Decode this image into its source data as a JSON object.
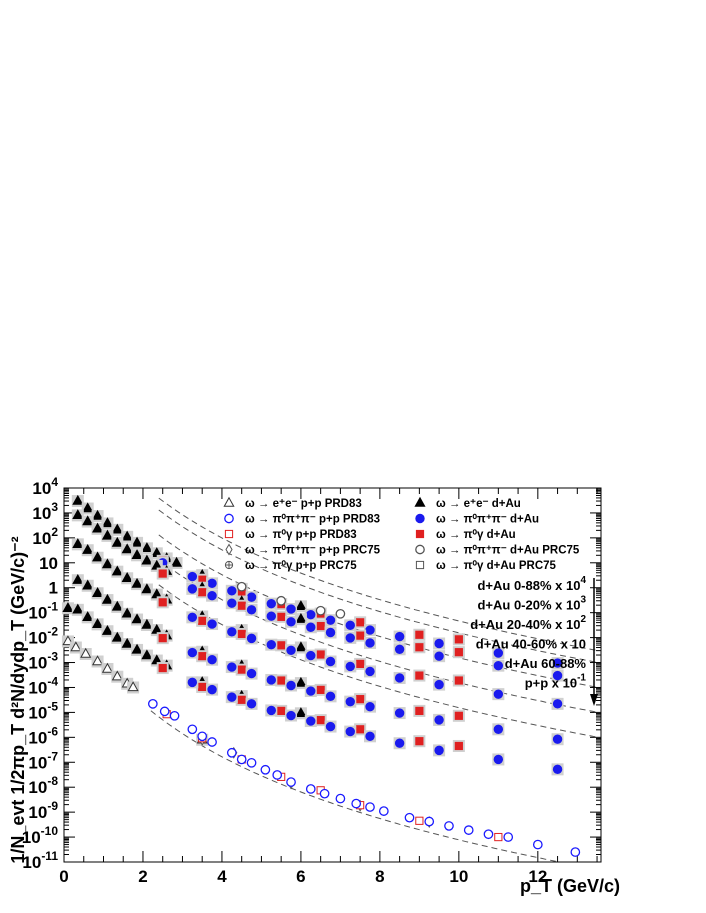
{
  "chart_data": {
    "type": "scatter",
    "xlabel": "p_T (GeV/c)",
    "ylabel": "1/N_evt 1/2πp_T d²N/dydp_T (GeV/c)⁻²",
    "xlim": [
      0,
      13.6
    ],
    "ylim": [
      1e-11,
      10000.0
    ],
    "y_scale": "log",
    "grid": false,
    "x_ticks": [
      "0",
      "2",
      "4",
      "6",
      "8",
      "10",
      "12"
    ],
    "y_ticks": [
      {
        "base": "10",
        "exp": "4"
      },
      {
        "base": "10",
        "exp": "3"
      },
      {
        "base": "10",
        "exp": "2"
      },
      {
        "base": "10",
        "exp": ""
      },
      {
        "base": "1",
        "exp": ""
      },
      {
        "base": "10",
        "exp": "-1"
      },
      {
        "base": "10",
        "exp": "-2"
      },
      {
        "base": "10",
        "exp": "-3"
      },
      {
        "base": "10",
        "exp": "-4"
      },
      {
        "base": "10",
        "exp": "-5"
      },
      {
        "base": "10",
        "exp": "-6"
      },
      {
        "base": "10",
        "exp": "-7"
      },
      {
        "base": "10",
        "exp": "-8"
      },
      {
        "base": "10",
        "exp": "-9"
      },
      {
        "base": "10",
        "exp": "-10"
      },
      {
        "base": "10",
        "exp": "-11"
      }
    ],
    "legend_position": "top-right",
    "legend": [
      {
        "text": "ω → e⁺e⁻ p+p PRD83",
        "marker": "open-triangle",
        "color": "#333333"
      },
      {
        "text": "ω → e⁺e⁻ d+Au",
        "marker": "filled-triangle",
        "color": "#000000"
      },
      {
        "text": "ω → π⁰π⁺π⁻ p+p PRD83",
        "marker": "open-circle",
        "color": "#1a1aff"
      },
      {
        "text": "ω → π⁰π⁺π⁻ d+Au",
        "marker": "filled-circle",
        "color": "#1a1aee"
      },
      {
        "text": "ω → π⁰γ p+p PRD83",
        "marker": "open-square",
        "color": "#e02020"
      },
      {
        "text": "ω → π⁰γ d+Au",
        "marker": "filled-square",
        "color": "#e02020"
      },
      {
        "text": "ω → π⁰π⁺π⁻ p+p PRC75",
        "marker": "open-diamond",
        "color": "#555555"
      },
      {
        "text": "ω → π⁰π⁺π⁻ d+Au PRC75",
        "marker": "open-circle",
        "color": "#555555"
      },
      {
        "text": "ω → π⁰γ p+p PRC75",
        "marker": "open-cross",
        "color": "#555555"
      },
      {
        "text": "ω → π⁰γ d+Au PRC75",
        "marker": "open-square",
        "color": "#555555"
      }
    ],
    "scale_labels": [
      {
        "text": "d+Au 0-88% x 10",
        "sup": "4"
      },
      {
        "text": "d+Au 0-20% x 10",
        "sup": "3"
      },
      {
        "text": "d+Au 20-40% x 10",
        "sup": "2"
      },
      {
        "text": "d+Au 40-60% x 10",
        "sup": ""
      },
      {
        "text": "d+Au 60-88%",
        "sup": ""
      },
      {
        "text": "p+p x 10",
        "sup": "-1"
      }
    ],
    "fit": {
      "A": 1,
      "p0": 1.2,
      "n": 10
    },
    "series": [
      {
        "name": "d+Au 0-88% x 10^4",
        "norm": 3000,
        "ee": [
          [
            0.35,
            3000
          ],
          [
            0.6,
            1500
          ],
          [
            0.85,
            750
          ],
          [
            1.1,
            380
          ],
          [
            1.35,
            210
          ],
          [
            1.6,
            110
          ],
          [
            1.85,
            63
          ],
          [
            2.1,
            38
          ],
          [
            2.35,
            24
          ],
          [
            2.6,
            15
          ],
          [
            2.85,
            9.8
          ],
          [
            3.5,
            3.2
          ],
          [
            4.5,
            0.9
          ],
          [
            6,
            0.18
          ]
        ],
        "pi0pipi": [
          [
            2.5,
            10
          ],
          [
            3.25,
            2.8
          ],
          [
            3.75,
            1.5
          ],
          [
            4.25,
            0.75
          ],
          [
            4.75,
            0.42
          ],
          [
            5.25,
            0.23
          ],
          [
            5.75,
            0.14
          ],
          [
            6.25,
            0.083
          ],
          [
            6.75,
            0.05
          ],
          [
            7.25,
            0.031
          ],
          [
            7.75,
            0.02
          ],
          [
            8.5,
            0.011
          ],
          [
            9.5,
            0.0058
          ],
          [
            11,
            0.0024
          ],
          [
            12.5,
            0.00095
          ]
        ],
        "pi0g": [
          [
            2.5,
            12
          ],
          [
            3.5,
            2.1
          ],
          [
            4.5,
            0.62
          ],
          [
            5.5,
            0.22
          ],
          [
            6.5,
            0.092
          ],
          [
            7.5,
            0.041
          ],
          [
            9,
            0.013
          ],
          [
            10,
            0.0085
          ]
        ],
        "prc75": [
          [
            4.5,
            1.1
          ],
          [
            5.5,
            0.3
          ],
          [
            6.5,
            0.12
          ],
          [
            7,
            0.09
          ]
        ]
      },
      {
        "name": "d+Au 0-20% x 10^3",
        "norm": 1000,
        "ee": [
          [
            0.35,
            800
          ],
          [
            0.6,
            450
          ],
          [
            0.85,
            230
          ],
          [
            1.1,
            120
          ],
          [
            1.35,
            62
          ],
          [
            1.6,
            34
          ],
          [
            1.85,
            20
          ],
          [
            2.1,
            12
          ],
          [
            2.35,
            7.5
          ],
          [
            2.6,
            4.6
          ],
          [
            3.5,
            1
          ],
          [
            4.5,
            0.28
          ],
          [
            6,
            0.055
          ]
        ],
        "pi0pipi": [
          [
            3.25,
            0.9
          ],
          [
            3.75,
            0.48
          ],
          [
            4.25,
            0.24
          ],
          [
            4.75,
            0.13
          ],
          [
            5.25,
            0.072
          ],
          [
            5.75,
            0.043
          ],
          [
            6.25,
            0.026
          ],
          [
            6.75,
            0.016
          ],
          [
            7.25,
            0.0097
          ],
          [
            7.75,
            0.0061
          ],
          [
            8.5,
            0.0034
          ],
          [
            9.5,
            0.0018
          ],
          [
            11,
            0.00075
          ],
          [
            12.5,
            0.0003
          ]
        ],
        "pi0g": [
          [
            2.5,
            3.7
          ],
          [
            3.5,
            0.66
          ],
          [
            4.5,
            0.19
          ],
          [
            5.5,
            0.068
          ],
          [
            6.5,
            0.029
          ],
          [
            7.5,
            0.012
          ],
          [
            9,
            0.0041
          ],
          [
            10,
            0.0026
          ]
        ],
        "prc75": []
      },
      {
        "name": "d+Au 20-40% x 10^2",
        "norm": 100,
        "ee": [
          [
            0.35,
            55
          ],
          [
            0.6,
            32
          ],
          [
            0.85,
            16
          ],
          [
            1.1,
            8.5
          ],
          [
            1.35,
            4.4
          ],
          [
            1.6,
            2.4
          ],
          [
            1.85,
            1.4
          ],
          [
            2.1,
            0.85
          ],
          [
            2.35,
            0.53
          ],
          [
            2.6,
            0.33
          ],
          [
            3.5,
            0.07
          ],
          [
            4.5,
            0.02
          ],
          [
            6,
            0.004
          ]
        ],
        "pi0pipi": [
          [
            3.25,
            0.065
          ],
          [
            3.75,
            0.035
          ],
          [
            4.25,
            0.017
          ],
          [
            4.75,
            0.0093
          ],
          [
            5.25,
            0.0052
          ],
          [
            5.75,
            0.0031
          ],
          [
            6.25,
            0.0019
          ],
          [
            6.75,
            0.0011
          ],
          [
            7.25,
            0.0007
          ],
          [
            7.75,
            0.00044
          ],
          [
            8.5,
            0.00024
          ],
          [
            9.5,
            0.00013
          ],
          [
            11,
            5.4e-05
          ],
          [
            12.5,
            2.2e-05
          ]
        ],
        "pi0g": [
          [
            2.5,
            0.26
          ],
          [
            3.5,
            0.047
          ],
          [
            4.5,
            0.014
          ],
          [
            5.5,
            0.0049
          ],
          [
            6.5,
            0.0021
          ],
          [
            7.5,
            0.00088
          ],
          [
            9,
            0.0003
          ],
          [
            10,
            0.00019
          ]
        ],
        "prc75": []
      },
      {
        "name": "d+Au 40-60% x 10",
        "norm": 10,
        "ee": [
          [
            0.35,
            2
          ],
          [
            0.6,
            1.2
          ],
          [
            0.85,
            0.6
          ],
          [
            1.1,
            0.32
          ],
          [
            1.35,
            0.17
          ],
          [
            1.6,
            0.09
          ],
          [
            1.85,
            0.053
          ],
          [
            2.1,
            0.032
          ],
          [
            2.35,
            0.02
          ],
          [
            2.6,
            0.012
          ],
          [
            3.5,
            0.0027
          ],
          [
            4.5,
            0.00075
          ],
          [
            6,
            0.00015
          ]
        ],
        "pi0pipi": [
          [
            3.25,
            0.0025
          ],
          [
            3.75,
            0.0013
          ],
          [
            4.25,
            0.00066
          ],
          [
            4.75,
            0.00036
          ],
          [
            5.25,
            0.0002
          ],
          [
            5.75,
            0.00012
          ],
          [
            6.25,
            7.2e-05
          ],
          [
            6.75,
            4.4e-05
          ],
          [
            7.25,
            2.7e-05
          ],
          [
            7.75,
            1.7e-05
          ],
          [
            8.5,
            9.4e-06
          ],
          [
            9.5,
            5e-06
          ],
          [
            11,
            2.1e-06
          ],
          [
            12.5,
            8.4e-07
          ]
        ],
        "pi0g": [
          [
            2.5,
            0.0095
          ],
          [
            3.5,
            0.0018
          ],
          [
            4.5,
            0.00052
          ],
          [
            5.5,
            0.00019
          ],
          [
            6.5,
            8e-05
          ],
          [
            7.5,
            3.4e-05
          ],
          [
            9,
            1.15e-05
          ],
          [
            10,
            7.3e-06
          ]
        ],
        "prc75": []
      },
      {
        "name": "d+Au 60-88%",
        "norm": 1,
        "ee": [
          [
            0.1,
            0.15
          ],
          [
            0.35,
            0.13
          ],
          [
            0.6,
            0.065
          ],
          [
            0.85,
            0.034
          ],
          [
            1.1,
            0.018
          ],
          [
            1.35,
            0.0097
          ],
          [
            1.6,
            0.0055
          ],
          [
            1.85,
            0.0032
          ],
          [
            2.1,
            0.0019
          ],
          [
            2.35,
            0.0012
          ],
          [
            2.6,
            0.00075
          ],
          [
            3.5,
            0.00016
          ],
          [
            4.5,
            4.5e-05
          ],
          [
            6,
            9.2e-06
          ]
        ],
        "pi0pipi": [
          [
            3.25,
            0.00016
          ],
          [
            3.75,
            8.2e-05
          ],
          [
            4.25,
            4.1e-05
          ],
          [
            4.75,
            2.2e-05
          ],
          [
            5.25,
            1.2e-05
          ],
          [
            5.75,
            7.5e-06
          ],
          [
            6.25,
            4.5e-06
          ],
          [
            6.75,
            2.7e-06
          ],
          [
            7.25,
            1.7e-06
          ],
          [
            7.75,
            1.1e-06
          ],
          [
            8.5,
            5.8e-07
          ],
          [
            9.5,
            3e-07
          ],
          [
            11,
            1.3e-07
          ],
          [
            12.5,
            5.2e-08
          ]
        ],
        "pi0g": [
          [
            2.5,
            0.0006
          ],
          [
            3.5,
            0.000105
          ],
          [
            4.5,
            3.2e-05
          ],
          [
            5.5,
            1.15e-05
          ],
          [
            6.5,
            4.9e-06
          ],
          [
            7.5,
            2.1e-06
          ],
          [
            9,
            7e-07
          ],
          [
            10,
            4.5e-07
          ]
        ],
        "prc75": []
      },
      {
        "name": "p+p x 10^-1",
        "norm": 0.01,
        "pp_ee": [
          [
            0.1,
            0.007
          ],
          [
            0.3,
            0.004
          ],
          [
            0.55,
            0.0022
          ],
          [
            0.85,
            0.0011
          ],
          [
            1.1,
            0.00055
          ],
          [
            1.35,
            0.00027
          ],
          [
            1.6,
            0.00014
          ],
          [
            1.75,
            0.0001
          ],
          [
            3.5,
            8e-07
          ]
        ],
        "pp_pi0pipi": [
          [
            2.25,
            2.2e-05
          ],
          [
            2.55,
            1.1e-05
          ],
          [
            2.8,
            7.3e-06
          ],
          [
            3.25,
            2.1e-06
          ],
          [
            3.5,
            1.1e-06
          ],
          [
            3.75,
            6.5e-07
          ],
          [
            4.25,
            2.4e-07
          ],
          [
            4.5,
            1.3e-07
          ],
          [
            4.75,
            9.5e-08
          ],
          [
            5.1,
            5e-08
          ],
          [
            5.4,
            3.1e-08
          ],
          [
            5.75,
            1.6e-08
          ],
          [
            6.25,
            8.5e-09
          ],
          [
            6.6,
            5.5e-09
          ],
          [
            7.0,
            3.5e-09
          ],
          [
            7.4,
            2.2e-09
          ],
          [
            7.75,
            1.6e-09
          ],
          [
            8.1,
            1.1e-09
          ],
          [
            8.75,
            6e-10
          ],
          [
            9.25,
            4.2e-10
          ],
          [
            9.75,
            2.8e-10
          ],
          [
            10.25,
            1.9e-10
          ],
          [
            10.75,
            1.3e-10
          ],
          [
            11.25,
            1e-10
          ],
          [
            12.0,
            5e-11
          ],
          [
            12.95,
            2.5e-11
          ]
        ],
        "pp_pi0g": [
          [
            2.6,
            8.5e-06
          ],
          [
            3.5,
            9.2e-07
          ],
          [
            4.5,
            1.3e-07
          ],
          [
            5.5,
            2.6e-08
          ],
          [
            6.5,
            7.5e-09
          ],
          [
            7.5,
            1.9e-09
          ],
          [
            9,
            4.5e-10
          ],
          [
            11,
            1e-10
          ]
        ],
        "pp_prc75": [
          [
            3.5,
            8e-07
          ],
          [
            4.3,
            2.4e-07
          ],
          [
            5.75,
            1.4e-08
          ],
          [
            7.5,
            1.8e-09
          ],
          [
            9.25,
            4e-10
          ]
        ]
      }
    ]
  }
}
